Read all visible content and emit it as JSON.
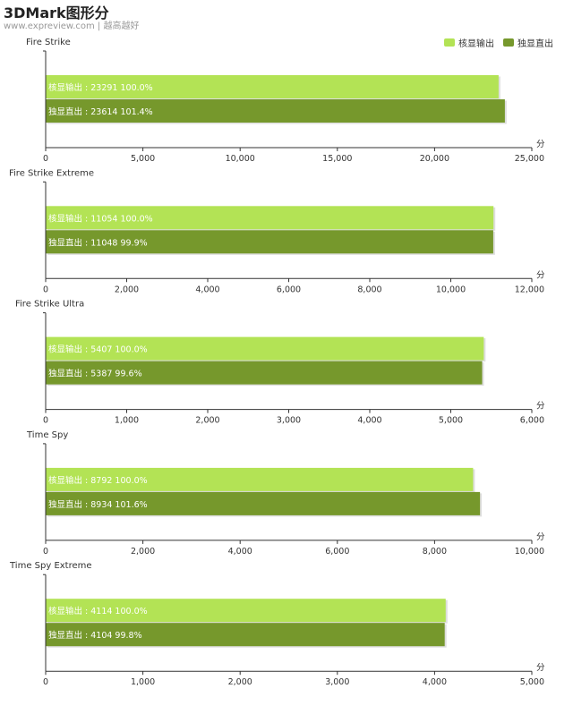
{
  "header": {
    "title": "3DMark图形分",
    "subtitle": "www.expreview.com | 越高越好"
  },
  "legend": {
    "position": "top-right",
    "items": [
      {
        "label": "核显输出",
        "color": "#b3e355"
      },
      {
        "label": "独显直出",
        "color": "#76982c"
      }
    ]
  },
  "unit": "分",
  "chart_data": [
    {
      "type": "bar",
      "orientation": "horizontal",
      "title": "Fire Strike",
      "xlim": [
        0,
        25000
      ],
      "xticks": [
        "0",
        "5,000",
        "10,000",
        "15,000",
        "20,000",
        "25,000"
      ],
      "xtick_values": [
        0,
        5000,
        10000,
        15000,
        20000,
        25000
      ],
      "series": [
        {
          "name": "核显输出",
          "values": [
            23291
          ],
          "label": "核显输出 : 23291  100.0%"
        },
        {
          "name": "独显直出",
          "values": [
            23614
          ],
          "label": "独显直出 : 23614  101.4%"
        }
      ]
    },
    {
      "type": "bar",
      "orientation": "horizontal",
      "title": "Fire Strike Extreme",
      "xlim": [
        0,
        12000
      ],
      "xticks": [
        "0",
        "2,000",
        "4,000",
        "6,000",
        "8,000",
        "10,000",
        "12,000"
      ],
      "xtick_values": [
        0,
        2000,
        4000,
        6000,
        8000,
        10000,
        12000
      ],
      "series": [
        {
          "name": "核显输出",
          "values": [
            11054
          ],
          "label": "核显输出 : 11054  100.0%"
        },
        {
          "name": "独显直出",
          "values": [
            11048
          ],
          "label": "独显直出 : 11048  99.9%"
        }
      ]
    },
    {
      "type": "bar",
      "orientation": "horizontal",
      "title": "Fire Strike Ultra",
      "xlim": [
        0,
        6000
      ],
      "xticks": [
        "0",
        "1,000",
        "2,000",
        "3,000",
        "4,000",
        "5,000",
        "6,000"
      ],
      "xtick_values": [
        0,
        1000,
        2000,
        3000,
        4000,
        5000,
        6000
      ],
      "series": [
        {
          "name": "核显输出",
          "values": [
            5407
          ],
          "label": "核显输出 : 5407  100.0%"
        },
        {
          "name": "独显直出",
          "values": [
            5387
          ],
          "label": "独显直出 : 5387  99.6%"
        }
      ]
    },
    {
      "type": "bar",
      "orientation": "horizontal",
      "title": "Time Spy",
      "xlim": [
        0,
        10000
      ],
      "xticks": [
        "0",
        "2,000",
        "4,000",
        "6,000",
        "8,000",
        "10,000"
      ],
      "xtick_values": [
        0,
        2000,
        4000,
        6000,
        8000,
        10000
      ],
      "series": [
        {
          "name": "核显输出",
          "values": [
            8792
          ],
          "label": "核显输出 : 8792  100.0%"
        },
        {
          "name": "独显直出",
          "values": [
            8934
          ],
          "label": "独显直出 : 8934  101.6%"
        }
      ]
    },
    {
      "type": "bar",
      "orientation": "horizontal",
      "title": "Time Spy Extreme",
      "xlim": [
        0,
        5000
      ],
      "xticks": [
        "0",
        "1,000",
        "2,000",
        "3,000",
        "4,000",
        "5,000"
      ],
      "xtick_values": [
        0,
        1000,
        2000,
        3000,
        4000,
        5000
      ],
      "series": [
        {
          "name": "核显输出",
          "values": [
            4114
          ],
          "label": "核显输出 : 4114  100.0%"
        },
        {
          "name": "独显直出",
          "values": [
            4104
          ],
          "label": "独显直出 : 4104  99.8%"
        }
      ]
    }
  ]
}
